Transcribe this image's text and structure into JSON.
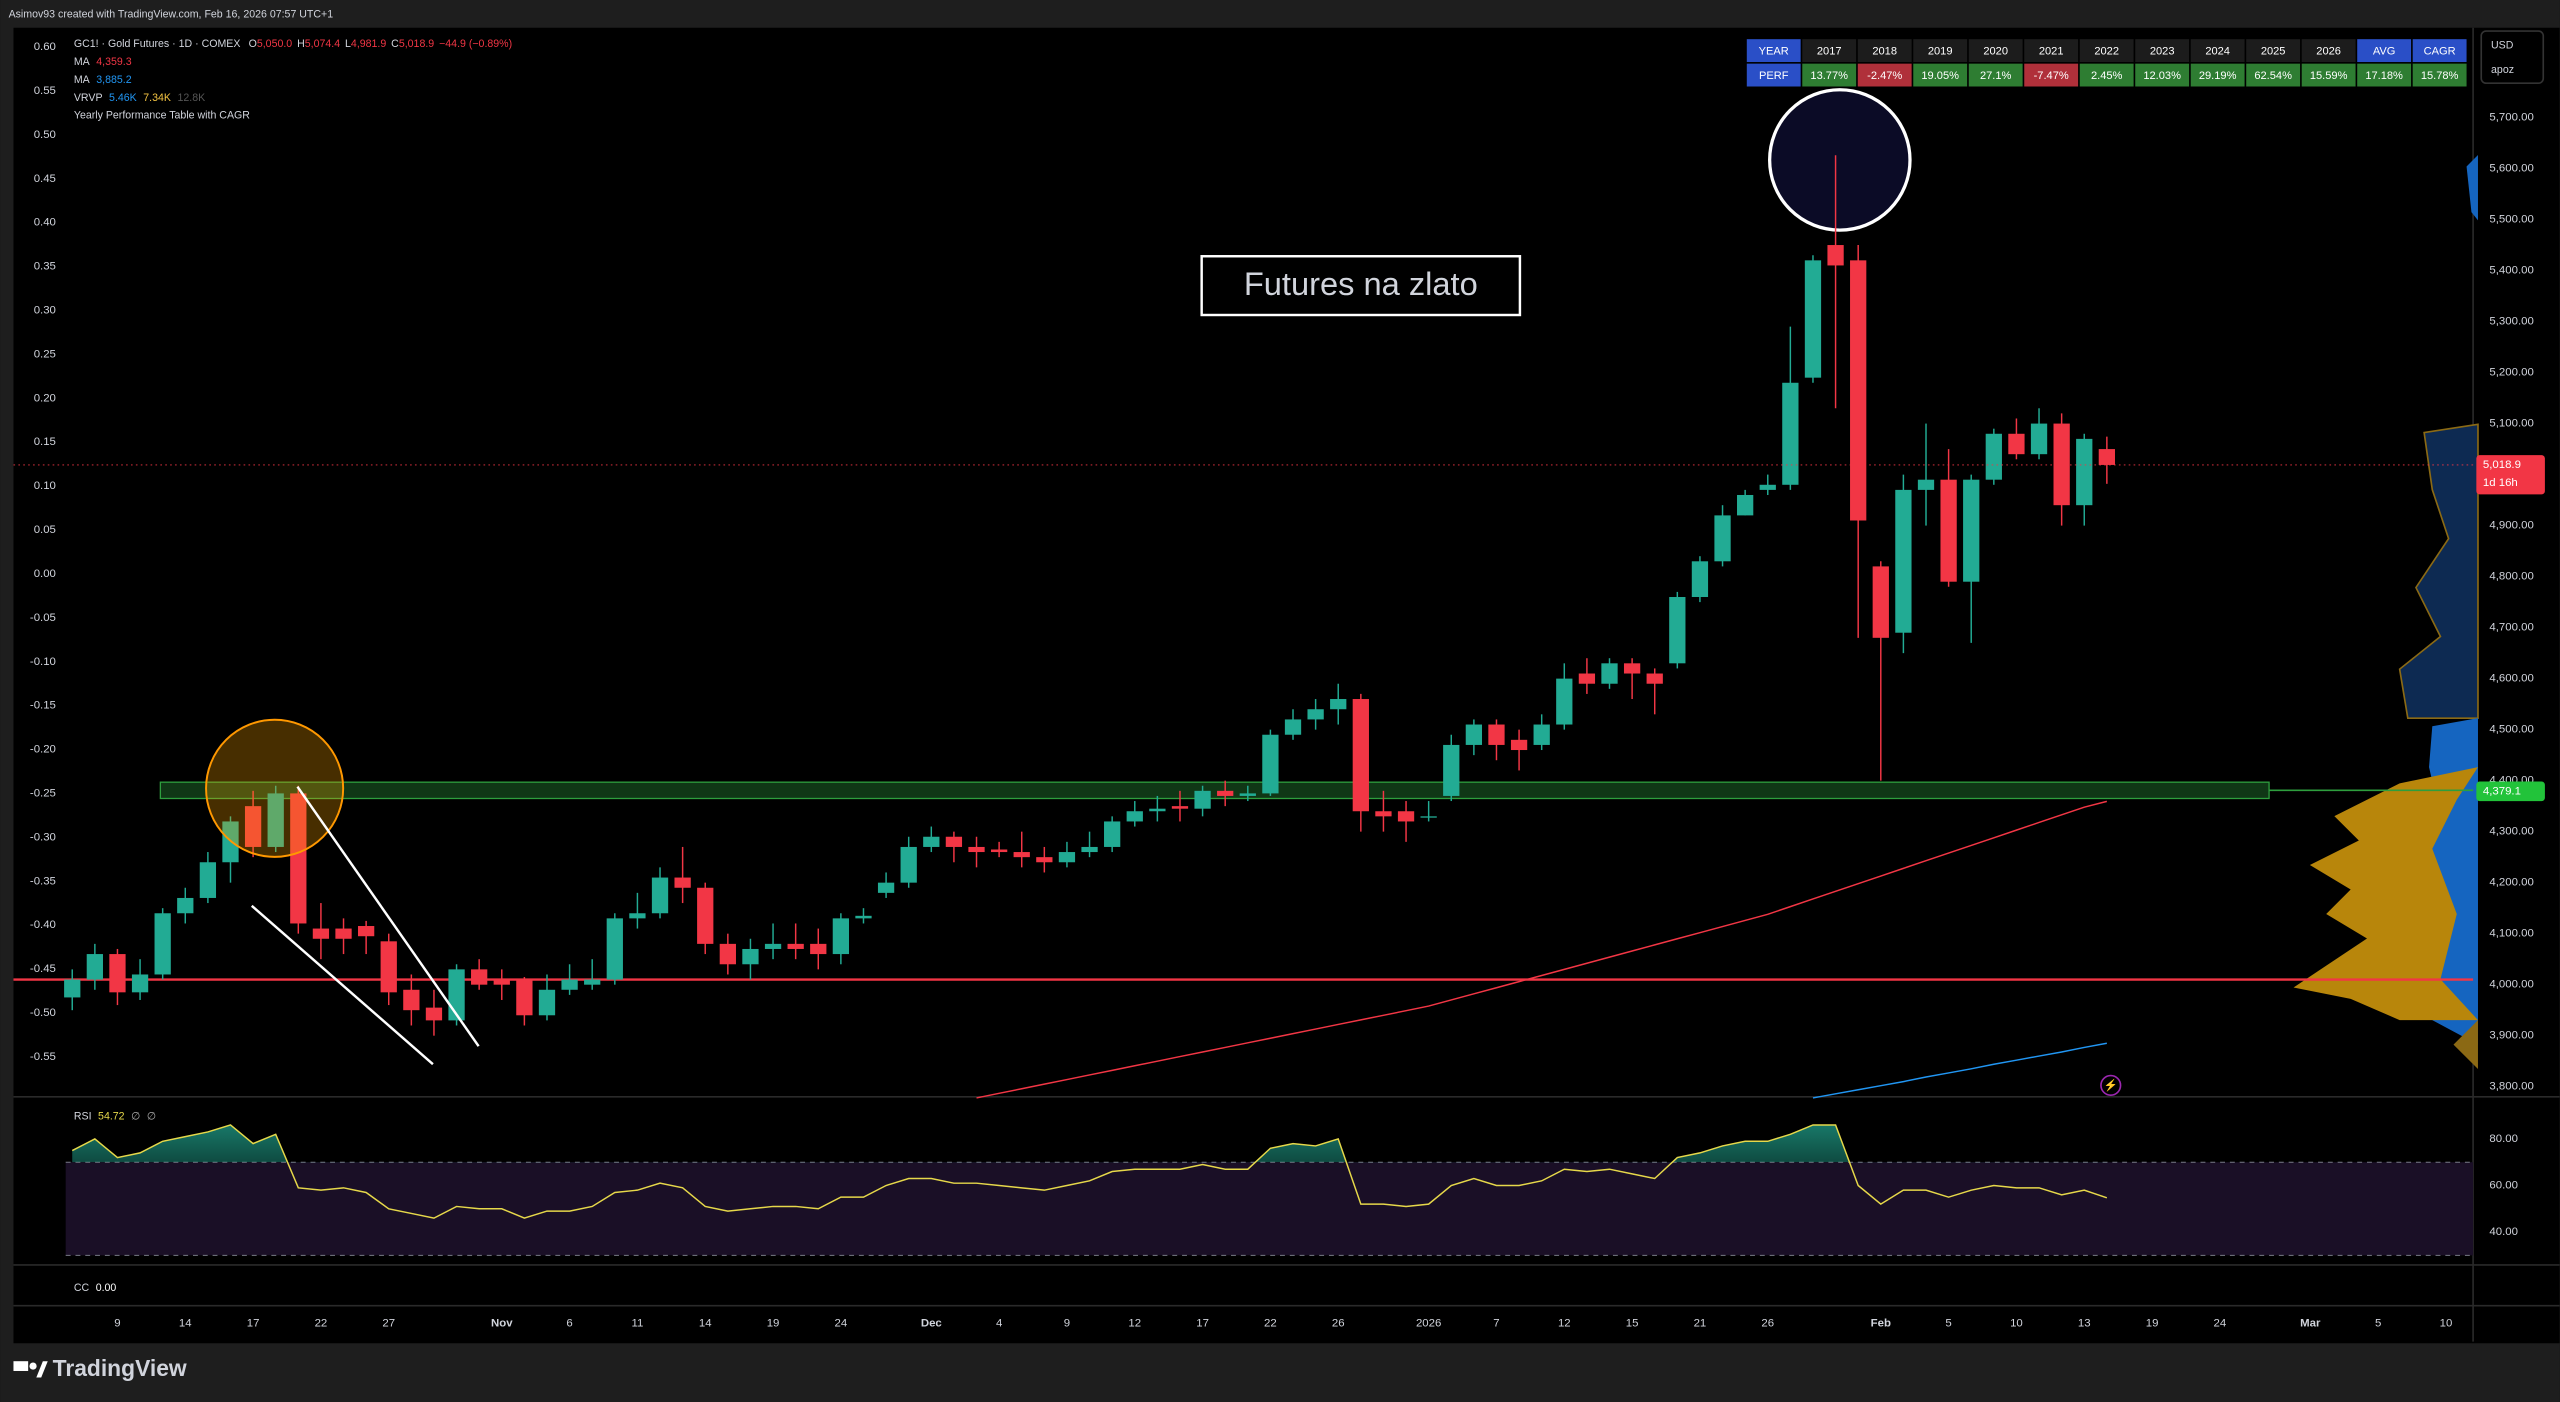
{
  "header": {
    "credit": "Asimov93 created with TradingView.com, Feb 16, 2026 07:57 UTC+1"
  },
  "legend": {
    "symbol": "GC1! · Gold Futures · 1D · COMEX",
    "ohlc": [
      [
        "O",
        "5,050.0"
      ],
      [
        "H",
        "5,074.4"
      ],
      [
        "L",
        "4,981.9"
      ],
      [
        "C",
        "5,018.9"
      ]
    ],
    "change": "−44.9 (−0.89%)",
    "ma1": [
      "MA",
      "4,359.3"
    ],
    "ma2": [
      "MA",
      "3,885.2"
    ],
    "vrvp": [
      "VRVP",
      "5.46K",
      "7.34K",
      "12.8K"
    ],
    "indicator": "Yearly Performance Table with CAGR",
    "rsi": [
      "RSI",
      "54.72",
      "∅",
      "∅"
    ],
    "cc": [
      "CC",
      "0.00"
    ]
  },
  "currency": {
    "code": "USD",
    "unit": "apoz"
  },
  "table": {
    "rows": [
      [
        "YEAR",
        "2017",
        "2018",
        "2019",
        "2020",
        "2021",
        "2022",
        "2023",
        "2024",
        "2025",
        "2026",
        "AVG",
        "CAGR"
      ],
      [
        "PERF",
        "13.77%",
        "-2.47%",
        "19.05%",
        "27.1%",
        "-7.47%",
        "2.45%",
        "12.03%",
        "29.19%",
        "62.54%",
        "15.59%",
        "17.18%",
        "15.78%"
      ]
    ]
  },
  "chart_data": [
    {
      "type": "candlestick",
      "annotation": "Futures na zlato",
      "up_color": "#22ab94",
      "down_color": "#f23645",
      "xlim": [
        -2.6,
        106.2
      ],
      "ylim": [
        3793,
        5876
      ],
      "y2lim": [
        -0.588,
        0.622
      ],
      "grid": false,
      "xticks": [
        {
          "value": 2,
          "label": "9"
        },
        {
          "value": 5,
          "label": "14"
        },
        {
          "value": 8,
          "label": "17"
        },
        {
          "value": 11,
          "label": "22"
        },
        {
          "value": 14,
          "label": "27"
        },
        {
          "value": 19,
          "label": "Nov"
        },
        {
          "value": 22,
          "label": "6"
        },
        {
          "value": 25,
          "label": "11"
        },
        {
          "value": 28,
          "label": "14"
        },
        {
          "value": 31,
          "label": "19"
        },
        {
          "value": 34,
          "label": "24"
        },
        {
          "value": 38,
          "label": "Dec"
        },
        {
          "value": 41,
          "label": "4"
        },
        {
          "value": 44,
          "label": "9"
        },
        {
          "value": 47,
          "label": "12"
        },
        {
          "value": 50,
          "label": "17"
        },
        {
          "value": 53,
          "label": "22"
        },
        {
          "value": 56,
          "label": "26"
        },
        {
          "value": 60,
          "label": "2026"
        },
        {
          "value": 63,
          "label": "7"
        },
        {
          "value": 66,
          "label": "12"
        },
        {
          "value": 69,
          "label": "15"
        },
        {
          "value": 72,
          "label": "21"
        },
        {
          "value": 75,
          "label": "26"
        },
        {
          "value": 80,
          "label": "Feb"
        },
        {
          "value": 83,
          "label": "5"
        },
        {
          "value": 86,
          "label": "10"
        },
        {
          "value": 89,
          "label": "13"
        },
        {
          "value": 92,
          "label": "19"
        },
        {
          "value": 95,
          "label": "24"
        },
        {
          "value": 99,
          "label": "Mar"
        },
        {
          "value": 102,
          "label": "5"
        },
        {
          "value": 105,
          "label": "10"
        }
      ],
      "yticks": [
        {
          "value": 5700,
          "label": "5,700.00"
        },
        {
          "value": 5600,
          "label": "5,600.00"
        },
        {
          "value": 5500,
          "label": "5,500.00"
        },
        {
          "value": 5400,
          "label": "5,400.00"
        },
        {
          "value": 5300,
          "label": "5,300.00"
        },
        {
          "value": 5200,
          "label": "5,200.00"
        },
        {
          "value": 5100,
          "label": "5,100.00"
        },
        {
          "value": 5000,
          "label": "5,000.00"
        },
        {
          "value": 4900,
          "label": "4,900.00"
        },
        {
          "value": 4800,
          "label": "4,800.00"
        },
        {
          "value": 4700,
          "label": "4,700.00"
        },
        {
          "value": 4600,
          "label": "4,600.00"
        },
        {
          "value": 4500,
          "label": "4,500.00"
        },
        {
          "value": 4400,
          "label": "4,400.00"
        },
        {
          "value": 4300,
          "label": "4,300.00"
        },
        {
          "value": 4200,
          "label": "4,200.00"
        },
        {
          "value": 4100,
          "label": "4,100.00"
        },
        {
          "value": 4000,
          "label": "4,000.00"
        },
        {
          "value": 3900,
          "label": "3,900.00"
        },
        {
          "value": 3800,
          "label": "3,800.00"
        }
      ],
      "y2ticks": [
        {
          "value": 0.6,
          "label": "0.60"
        },
        0.55,
        {
          "value": 0.5,
          "label": "0.50"
        },
        0.45,
        {
          "value": 0.4,
          "label": "0.40"
        },
        0.35,
        {
          "value": 0.3,
          "label": "0.30"
        },
        0.25,
        {
          "value": 0.2,
          "label": "0.20"
        },
        0.15,
        {
          "value": 0.1,
          "label": "0.10"
        },
        0.05,
        {
          "value": 0,
          "label": "0.00"
        },
        -0.05,
        {
          "value": -0.1,
          "label": "-0.10"
        },
        -0.15,
        {
          "value": -0.2,
          "label": "-0.20"
        },
        -0.25,
        {
          "value": -0.3,
          "label": "-0.30"
        },
        -0.35,
        {
          "value": -0.4,
          "label": "-0.40"
        },
        -0.45,
        {
          "value": -0.5,
          "label": "-0.50"
        },
        -0.55
      ],
      "open": [
        3975,
        4010,
        4060,
        3985,
        4020,
        4140,
        4170,
        4240,
        4350,
        4270,
        4375,
        4110,
        4110,
        4115,
        4085,
        3990,
        3955,
        3930,
        4030,
        4010,
        4010,
        3940,
        3990,
        4000,
        4010,
        4130,
        4140,
        4210,
        4190,
        4080,
        4040,
        4070,
        4080,
        4080,
        4060,
        4130,
        4180,
        4200,
        4270,
        4290,
        4270,
        4265,
        4260,
        4250,
        4240,
        4260,
        4270,
        4320,
        4340,
        4350,
        4345,
        4380,
        4370,
        4375,
        4490,
        4520,
        4540,
        4560,
        4340,
        4340,
        4330,
        4370,
        4470,
        4510,
        4480,
        4470,
        4510,
        4610,
        4590,
        4630,
        4610,
        4630,
        4760,
        4830,
        4920,
        4970,
        4980,
        5190,
        5450,
        5420,
        4820,
        4690,
        4970,
        4990,
        4790,
        4990,
        5080,
        5040,
        5100,
        4940,
        5050
      ],
      "high": [
        4030,
        4080,
        4070,
        4050,
        4150,
        4190,
        4260,
        4330,
        4380,
        4390,
        4390,
        4160,
        4130,
        4125,
        4100,
        4020,
        3990,
        4040,
        4050,
        4030,
        4015,
        4020,
        4040,
        4050,
        4140,
        4180,
        4230,
        4270,
        4200,
        4100,
        4090,
        4120,
        4120,
        4110,
        4140,
        4150,
        4220,
        4290,
        4310,
        4300,
        4290,
        4280,
        4300,
        4270,
        4280,
        4300,
        4330,
        4360,
        4370,
        4380,
        4390,
        4400,
        4390,
        4500,
        4540,
        4560,
        4590,
        4570,
        4380,
        4360,
        4360,
        4490,
        4520,
        4520,
        4500,
        4530,
        4630,
        4640,
        4640,
        4640,
        4620,
        4770,
        4840,
        4940,
        4970,
        5000,
        5290,
        5430,
        5626,
        5450,
        4830,
        5000,
        5100,
        5050,
        5000,
        5090,
        5110,
        5130,
        5120,
        5080,
        5074.4
      ],
      "low": [
        3950,
        3990,
        3960,
        3970,
        4010,
        4120,
        4160,
        4200,
        4250,
        4260,
        4100,
        4050,
        4060,
        4060,
        3960,
        3920,
        3900,
        3920,
        3990,
        3970,
        3920,
        3930,
        3980,
        3990,
        4000,
        4110,
        4130,
        4160,
        4060,
        4020,
        4010,
        4050,
        4050,
        4030,
        4040,
        4120,
        4170,
        4190,
        4260,
        4240,
        4230,
        4250,
        4230,
        4220,
        4230,
        4250,
        4260,
        4310,
        4320,
        4320,
        4330,
        4350,
        4360,
        4370,
        4480,
        4500,
        4510,
        4300,
        4300,
        4280,
        4320,
        4360,
        4450,
        4440,
        4420,
        4460,
        4500,
        4570,
        4580,
        4560,
        4530,
        4620,
        4750,
        4820,
        4920,
        4960,
        4970,
        5180,
        5130,
        4680,
        4400,
        4650,
        4900,
        4780,
        4670,
        4980,
        5030,
        5030,
        4900,
        4900,
        4981.9
      ],
      "close": [
        4010,
        4060,
        3985,
        4020,
        4140,
        4170,
        4240,
        4320,
        4270,
        4375,
        4120,
        4090,
        4090,
        4095,
        3985,
        3950,
        3930,
        4030,
        4000,
        4000,
        3940,
        3990,
        4010,
        4010,
        4130,
        4140,
        4210,
        4190,
        4080,
        4040,
        4070,
        4080,
        4070,
        4060,
        4130,
        4135,
        4200,
        4270,
        4290,
        4270,
        4260,
        4260,
        4250,
        4240,
        4260,
        4270,
        4320,
        4340,
        4345,
        4345,
        4380,
        4370,
        4375,
        4490,
        4520,
        4540,
        4560,
        4340,
        4330,
        4320,
        4330,
        4470,
        4510,
        4470,
        4460,
        4510,
        4600,
        4590,
        4630,
        4610,
        4590,
        4760,
        4830,
        4920,
        4960,
        4980,
        5180,
        5420,
        5410,
        4910,
        4680,
        4970,
        4990,
        4790,
        4990,
        5080,
        5040,
        5100,
        4940,
        5070,
        5018.9
      ],
      "lines": [
        {
          "color": "#f23645",
          "values": [
            null,
            null,
            null,
            null,
            null,
            null,
            null,
            null,
            null,
            null,
            null,
            null,
            null,
            null,
            null,
            null,
            null,
            null,
            null,
            null,
            null,
            null,
            null,
            null,
            null,
            null,
            null,
            null,
            null,
            null,
            null,
            null,
            null,
            null,
            null,
            null,
            null,
            null,
            null,
            null,
            3778,
            3787,
            3796,
            3805,
            3814,
            3823,
            3832,
            3841,
            3850,
            3859,
            3868,
            3877,
            3886,
            3895,
            3904,
            3913,
            3922,
            3931,
            3940,
            3949,
            3958,
            3970,
            3982,
            3994,
            4006,
            4018,
            4030,
            4042,
            4054,
            4066,
            4078,
            4090,
            4102,
            4114,
            4126,
            4138,
            4153,
            4168,
            4183,
            4198,
            4213,
            4228,
            4243,
            4258,
            4273,
            4288,
            4303,
            4318,
            4333,
            4348,
            4359.3
          ]
        },
        {
          "color": "#2196f3",
          "values": [
            null,
            null,
            null,
            null,
            null,
            null,
            null,
            null,
            null,
            null,
            null,
            null,
            null,
            null,
            null,
            null,
            null,
            null,
            null,
            null,
            null,
            null,
            null,
            null,
            null,
            null,
            null,
            null,
            null,
            null,
            null,
            null,
            null,
            null,
            null,
            null,
            null,
            null,
            null,
            null,
            null,
            null,
            null,
            null,
            null,
            null,
            null,
            null,
            null,
            null,
            null,
            null,
            null,
            null,
            null,
            null,
            null,
            null,
            null,
            null,
            null,
            null,
            null,
            null,
            null,
            null,
            null,
            null,
            null,
            null,
            null,
            null,
            null,
            null,
            null,
            null,
            null,
            3778,
            3786,
            3794,
            3802,
            3810,
            3819,
            3827,
            3835,
            3844,
            3852,
            3860,
            3868,
            3877,
            3885.2
          ]
        }
      ],
      "hline": {
        "value": 4010,
        "color": "#f23645"
      },
      "zone": {
        "from": 4365,
        "to": 4397,
        "color": "#2e9e3e"
      },
      "price_labels": [
        {
          "value": 5018.9,
          "label": "5,018.9",
          "sub": "1d 16h",
          "color": "#f23645"
        },
        {
          "value": 4379.1,
          "label": "4,379.1",
          "color": "#22c33a"
        }
      ]
    },
    {
      "type": "line",
      "color": "#e6d84a",
      "ylim": [
        28,
        96
      ],
      "levels": [
        70,
        30
      ],
      "yticks": [
        {
          "value": 80,
          "label": "80.00"
        },
        {
          "value": 60,
          "label": "60.00"
        },
        {
          "value": 40,
          "label": "40.00"
        }
      ],
      "values": [
        75,
        80,
        72,
        74,
        79,
        81,
        83,
        86,
        78,
        82,
        59,
        58,
        59,
        57,
        50,
        48,
        46,
        51,
        50,
        50,
        46,
        49,
        49,
        51,
        57,
        58,
        61,
        59,
        51,
        49,
        50,
        51,
        51,
        50,
        55,
        55,
        60,
        63,
        63,
        61,
        61,
        60,
        59,
        58,
        60,
        62,
        66,
        67,
        67,
        67,
        69,
        67,
        67,
        76,
        78,
        77,
        80,
        52,
        52,
        51,
        52,
        60,
        63,
        60,
        60,
        62,
        67,
        66,
        67,
        65,
        63,
        72,
        74,
        77,
        79,
        79,
        82,
        86,
        86,
        60,
        52,
        58,
        58,
        55,
        58,
        60,
        59,
        59,
        56,
        58,
        54.72
      ]
    }
  ],
  "footer": {
    "brand": "TradingView"
  }
}
